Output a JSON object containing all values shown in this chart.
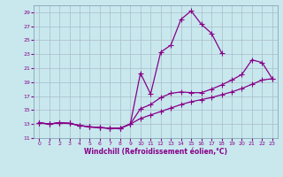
{
  "bg_color": "#c8e8ee",
  "grid_color": "#aabbc8",
  "line_color": "#880088",
  "xlabel": "Windchill (Refroidissement éolien,°C)",
  "xlim": [
    -0.5,
    23.5
  ],
  "ylim": [
    11,
    30
  ],
  "yticks": [
    11,
    13,
    15,
    17,
    19,
    21,
    23,
    25,
    27,
    29
  ],
  "xticks": [
    0,
    1,
    2,
    3,
    4,
    5,
    6,
    7,
    8,
    9,
    10,
    11,
    12,
    13,
    14,
    15,
    16,
    17,
    18,
    19,
    20,
    21,
    22,
    23
  ],
  "curve_high_x": [
    0,
    1,
    2,
    3,
    4,
    5,
    6,
    7,
    8,
    9,
    10,
    11,
    12,
    13,
    14,
    15,
    16,
    17,
    18
  ],
  "curve_high_y": [
    13.2,
    13.0,
    13.2,
    13.1,
    12.8,
    12.6,
    12.5,
    12.4,
    12.4,
    13.0,
    20.3,
    17.3,
    23.3,
    24.3,
    28.0,
    29.2,
    27.3,
    26.0,
    23.2
  ],
  "curve_mid_x": [
    0,
    1,
    2,
    3,
    4,
    5,
    6,
    7,
    8,
    9,
    10,
    11,
    12,
    13,
    14,
    15,
    16,
    17,
    18,
    19,
    20,
    21,
    22,
    23
  ],
  "curve_mid_y": [
    13.2,
    13.0,
    13.2,
    13.1,
    12.8,
    12.6,
    12.5,
    12.4,
    12.4,
    13.0,
    15.2,
    15.8,
    16.8,
    17.4,
    17.6,
    17.5,
    17.5,
    18.0,
    18.6,
    19.3,
    20.1,
    22.2,
    21.8,
    19.5
  ],
  "curve_low_x": [
    0,
    1,
    2,
    3,
    4,
    5,
    6,
    7,
    8,
    9,
    10,
    11,
    12,
    13,
    14,
    15,
    16,
    17,
    18,
    19,
    20,
    21,
    22,
    23
  ],
  "curve_low_y": [
    13.2,
    13.0,
    13.2,
    13.1,
    12.8,
    12.6,
    12.5,
    12.4,
    12.4,
    13.0,
    13.8,
    14.3,
    14.8,
    15.3,
    15.8,
    16.2,
    16.5,
    16.8,
    17.2,
    17.6,
    18.1,
    18.7,
    19.3,
    19.5
  ],
  "lw": 0.9,
  "ms": 2.2
}
